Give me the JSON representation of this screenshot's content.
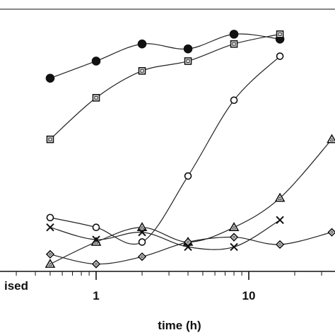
{
  "chart_data": {
    "type": "line",
    "x_scale": "log",
    "xlim": [
      0.1,
      40
    ],
    "ylim": [
      0,
      100
    ],
    "xlabel": "time (h)",
    "ylabel_fragment": "ised",
    "x_tick_labels": [
      {
        "value": 1,
        "label": "1"
      },
      {
        "value": 10,
        "label": "10"
      }
    ],
    "grid": false,
    "series": [
      {
        "marker": "filled-circle",
        "x": [
          0.5,
          1,
          2,
          4,
          8,
          16
        ],
        "y": [
          79,
          86,
          93,
          91,
          97,
          95
        ]
      },
      {
        "marker": "square",
        "x": [
          0.5,
          1,
          2,
          4,
          8,
          16
        ],
        "y": [
          54,
          71,
          82,
          86,
          93,
          97
        ]
      },
      {
        "marker": "open-circle",
        "x": [
          0.5,
          1,
          2,
          4,
          8,
          16
        ],
        "y": [
          22,
          18,
          12,
          39,
          70,
          88
        ]
      },
      {
        "marker": "triangle",
        "x": [
          0.5,
          1,
          2,
          4,
          8,
          16,
          35
        ],
        "y": [
          3,
          12,
          18,
          12,
          18,
          30,
          54
        ]
      },
      {
        "marker": "cross",
        "x": [
          0.5,
          1,
          2,
          4,
          8,
          16
        ],
        "y": [
          18,
          13,
          16,
          10,
          10,
          21
        ]
      },
      {
        "marker": "diamond",
        "x": [
          0.5,
          1,
          2,
          4,
          8,
          16,
          35
        ],
        "y": [
          7,
          3,
          6,
          12,
          14,
          11,
          16
        ]
      }
    ]
  }
}
